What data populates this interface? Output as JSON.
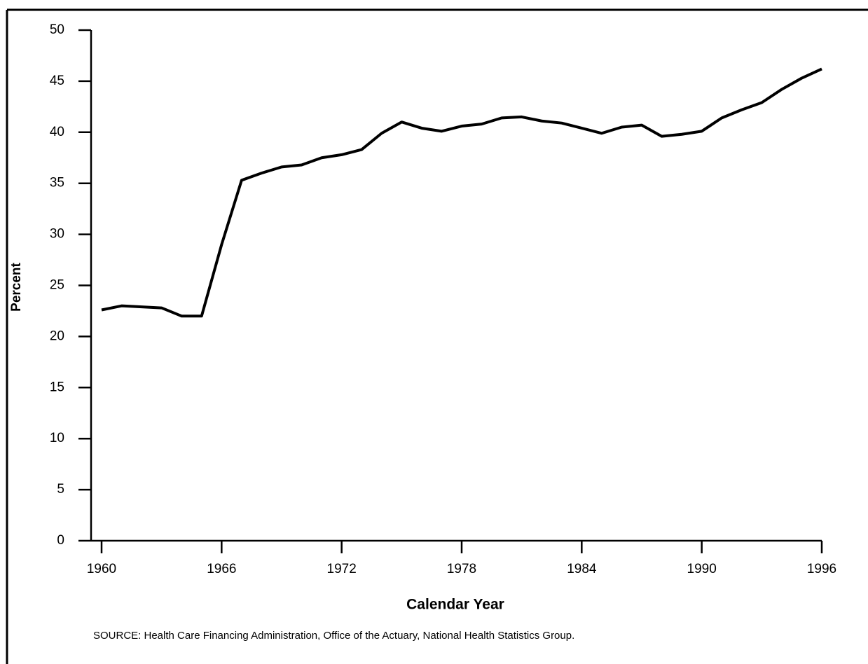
{
  "chart_data": {
    "type": "line",
    "x": [
      1960,
      1961,
      1962,
      1963,
      1964,
      1965,
      1966,
      1967,
      1968,
      1969,
      1970,
      1971,
      1972,
      1973,
      1974,
      1975,
      1976,
      1977,
      1978,
      1979,
      1980,
      1981,
      1982,
      1983,
      1984,
      1985,
      1986,
      1987,
      1988,
      1989,
      1990,
      1991,
      1992,
      1993,
      1994,
      1995,
      1996
    ],
    "series": [
      {
        "color": "#000000",
        "values": [
          22.6,
          23.0,
          22.9,
          22.8,
          22.0,
          22.0,
          29.0,
          35.3,
          36.0,
          36.6,
          36.8,
          37.5,
          37.8,
          38.3,
          39.9,
          41.0,
          40.4,
          40.1,
          40.6,
          40.8,
          41.4,
          41.5,
          41.1,
          40.9,
          40.4,
          39.9,
          40.5,
          40.7,
          39.6,
          39.8,
          40.1,
          41.4,
          42.2,
          42.9,
          44.2,
          45.3,
          46.2
        ]
      }
    ],
    "xlim": [
      1960,
      1996
    ],
    "xticks": [
      1960,
      1966,
      1972,
      1978,
      1984,
      1990,
      1996
    ],
    "ylim": [
      0,
      50
    ],
    "yticks": [
      0,
      5,
      10,
      15,
      20,
      25,
      30,
      35,
      40,
      45,
      50
    ],
    "xlabel": "Calendar Year",
    "ylabel": "Percent",
    "source": "SOURCE: Health Care Financing Administration, Office of the Actuary, National Health Statistics Group."
  }
}
